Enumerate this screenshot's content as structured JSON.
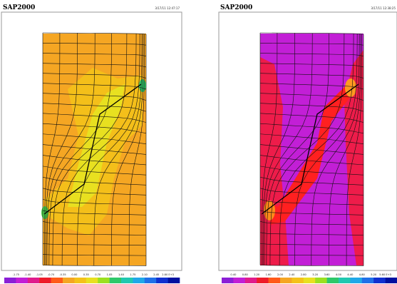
{
  "panels": [
    {
      "title": "SAP2000",
      "timestamp": "3/17/11 12:47:17",
      "legend_labels": [
        "-1.75",
        "-1.40",
        "-1.05",
        "-0.70",
        "-0.35",
        "0.00",
        "0.35",
        "0.70",
        "1.05",
        "1.40",
        "1.75",
        "2.10",
        "2.45",
        "2.80 E+3"
      ]
    },
    {
      "title": "SAP2000",
      "timestamp": "3/17/11 12:38:25",
      "legend_labels": [
        "0.40",
        "0.80",
        "1.20",
        "1.60",
        "2.00",
        "2.40",
        "2.80",
        "3.20",
        "3.60",
        "4.00",
        "4.40",
        "4.80",
        "5.20",
        "5.60 E+3"
      ]
    }
  ]
}
